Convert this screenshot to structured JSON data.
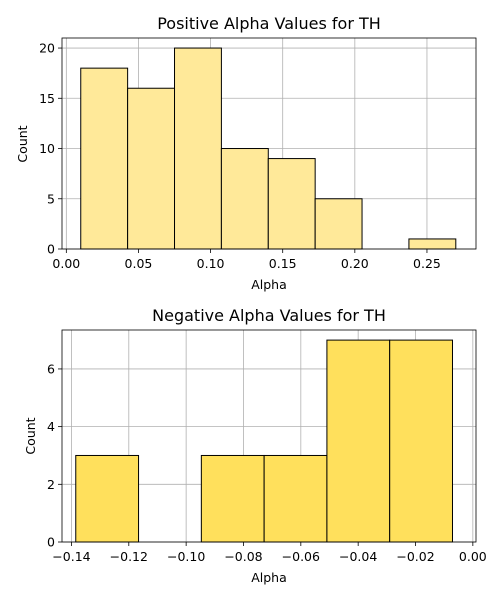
{
  "chart_data": [
    {
      "type": "bar",
      "title": "Positive Alpha Values for TH",
      "xlabel": "Alpha",
      "ylabel": "Count",
      "bar_color": "#ffe999",
      "edge_color": "#000000",
      "grid": true,
      "xlim": [
        -0.003,
        0.284
      ],
      "ylim": [
        0,
        21
      ],
      "xticks": [
        0.0,
        0.05,
        0.1,
        0.15,
        0.2,
        0.25
      ],
      "xtick_labels": [
        "0.00",
        "0.05",
        "0.10",
        "0.15",
        "0.20",
        "0.25"
      ],
      "yticks": [
        0,
        5,
        10,
        15,
        20
      ],
      "ytick_labels": [
        "0",
        "5",
        "10",
        "15",
        "20"
      ],
      "bins": [
        {
          "x0": 0.01,
          "x1": 0.0425,
          "count": 18
        },
        {
          "x0": 0.0425,
          "x1": 0.075,
          "count": 16
        },
        {
          "x0": 0.075,
          "x1": 0.1075,
          "count": 20
        },
        {
          "x0": 0.1075,
          "x1": 0.14,
          "count": 10
        },
        {
          "x0": 0.14,
          "x1": 0.1725,
          "count": 9
        },
        {
          "x0": 0.1725,
          "x1": 0.205,
          "count": 5
        },
        {
          "x0": 0.205,
          "x1": 0.2375,
          "count": 0
        },
        {
          "x0": 0.2375,
          "x1": 0.27,
          "count": 1
        }
      ]
    },
    {
      "type": "bar",
      "title": "Negative Alpha Values for TH",
      "xlabel": "Alpha",
      "ylabel": "Count",
      "bar_color": "#ffe05c",
      "edge_color": "#000000",
      "grid": true,
      "xlim": [
        -0.1433,
        0.0011
      ],
      "ylim": [
        0,
        7.35
      ],
      "xticks": [
        -0.14,
        -0.12,
        -0.1,
        -0.08,
        -0.06,
        -0.04,
        -0.02,
        0.0
      ],
      "xtick_labels": [
        "−0.14",
        "−0.12",
        "−0.10",
        "−0.08",
        "−0.06",
        "−0.04",
        "−0.02",
        "0.00"
      ],
      "yticks": [
        0,
        2,
        4,
        6
      ],
      "ytick_labels": [
        "0",
        "2",
        "4",
        "6"
      ],
      "bins": [
        {
          "x0": -0.1385,
          "x1": -0.1166,
          "count": 3
        },
        {
          "x0": -0.1166,
          "x1": -0.0947,
          "count": 0
        },
        {
          "x0": -0.0947,
          "x1": -0.0728,
          "count": 3
        },
        {
          "x0": -0.0728,
          "x1": -0.0509,
          "count": 3
        },
        {
          "x0": -0.0509,
          "x1": -0.029,
          "count": 7
        },
        {
          "x0": -0.029,
          "x1": -0.0071,
          "count": 7
        }
      ]
    }
  ]
}
